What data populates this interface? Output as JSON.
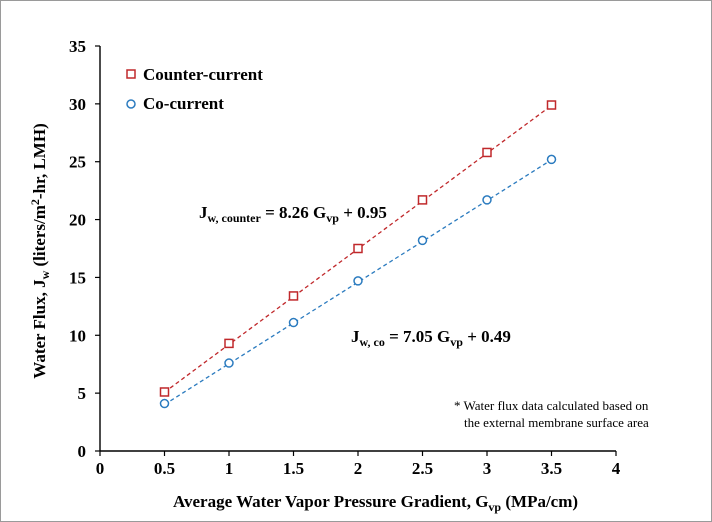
{
  "chart_data": {
    "type": "scatter",
    "xlabel": {
      "main": "Average Water Vapor Pressure Gradient, G",
      "sub": "vp",
      "tail": " (MPa/cm)"
    },
    "ylabel": {
      "p1": "Water Flux, J",
      "sub": "w",
      "p2": " (liters/m",
      "sup": "2",
      "p3": "-hr, LMH)"
    },
    "xlim": [
      0,
      4
    ],
    "ylim": [
      0,
      35
    ],
    "x_ticks": [
      0,
      0.5,
      1,
      1.5,
      2,
      2.5,
      3,
      3.5,
      4
    ],
    "y_ticks": [
      0,
      5,
      10,
      15,
      20,
      25,
      30,
      35
    ],
    "x_tick_labels": [
      "0",
      "0.5",
      "1",
      "1.5",
      "2",
      "2.5",
      "3",
      "3.5",
      "4"
    ],
    "y_tick_labels": [
      "0",
      "5",
      "10",
      "15",
      "20",
      "25",
      "30",
      "35"
    ],
    "grid": false,
    "legend": "top-left",
    "series": [
      {
        "name": "Counter-current",
        "marker": "square",
        "color": "#c0282b",
        "x": [
          0.5,
          1,
          1.5,
          2,
          2.5,
          3,
          3.5
        ],
        "y": [
          5.1,
          9.3,
          13.4,
          17.5,
          21.7,
          25.8,
          29.9
        ],
        "fit": {
          "slope": 8.26,
          "intercept": 0.95
        }
      },
      {
        "name": "Co-current",
        "marker": "circle",
        "color": "#2b7bbf",
        "x": [
          0.5,
          1,
          1.5,
          2,
          2.5,
          3,
          3.5
        ],
        "y": [
          4.1,
          7.6,
          11.1,
          14.7,
          18.2,
          21.7,
          25.2
        ],
        "fit": {
          "slope": 7.05,
          "intercept": 0.49
        }
      }
    ],
    "annotations": {
      "counter_eq": {
        "a": "J",
        "sub": "w, counter",
        "b": " = 8.26 G",
        "sub2": "vp",
        "c": " + 0.95"
      },
      "co_eq": {
        "a": "J",
        "sub": "w, co",
        "b": " = 7.05 G",
        "sub2": "vp",
        "c": " + 0.49"
      },
      "note_line1": "* Water flux data calculated based on",
      "note_line2": "the external membrane surface area"
    }
  }
}
